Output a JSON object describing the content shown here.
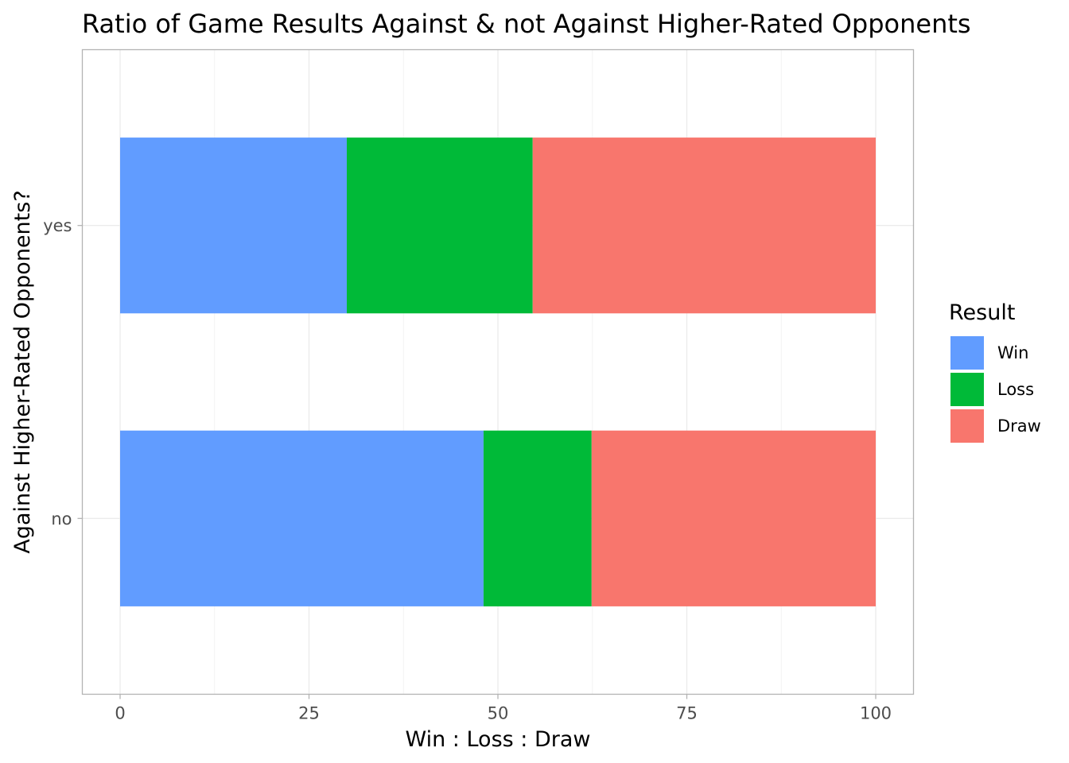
{
  "chart_data": {
    "type": "bar",
    "orientation": "horizontal",
    "stacked": true,
    "title": "Ratio of Game Results Against & not Against Higher-Rated Opponents",
    "xlabel": "Win : Loss : Draw",
    "ylabel": "Against Higher-Rated Opponents?",
    "xlim": [
      -5,
      105
    ],
    "x_ticks": [
      0,
      25,
      50,
      75,
      100
    ],
    "x_tick_labels": [
      "0",
      "25",
      "50",
      "75",
      "100"
    ],
    "categories": [
      "no",
      "yes"
    ],
    "series": [
      {
        "name": "Win",
        "color": "#619CFF",
        "values": [
          48.1,
          30.0
        ]
      },
      {
        "name": "Loss",
        "color": "#00BA38",
        "values": [
          14.3,
          24.6
        ]
      },
      {
        "name": "Draw",
        "color": "#F8766D",
        "values": [
          37.6,
          45.4
        ]
      }
    ],
    "legend": {
      "title": "Result",
      "position": "right",
      "entries": [
        "Win",
        "Loss",
        "Draw"
      ]
    },
    "grid": true
  }
}
